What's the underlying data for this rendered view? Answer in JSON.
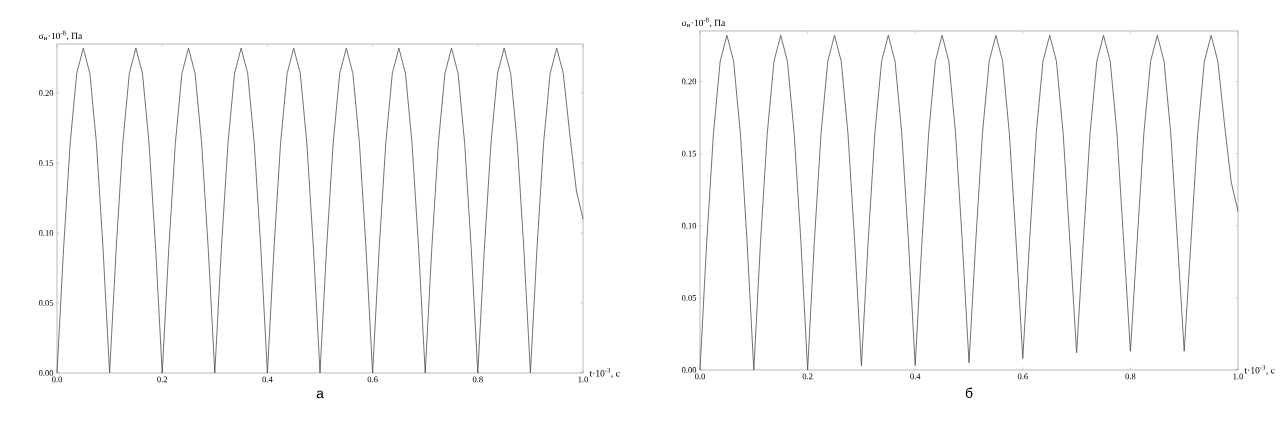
{
  "chart_data": [
    {
      "type": "line",
      "title": "а",
      "xlabel": "t·10$^{-3}$, с",
      "ylabel": "σ$_{и}$·10$^{-8}$, Па",
      "color": "#4d4d4d",
      "grid": false,
      "marker": "none",
      "xlim": [
        0,
        1.0
      ],
      "ylim": [
        0,
        0.235
      ],
      "xticks": [
        {
          "value": 0,
          "label": "0.0"
        },
        {
          "value": 0.2,
          "label": "0.2"
        },
        {
          "value": 0.4,
          "label": "0.4"
        },
        {
          "value": 0.6,
          "label": "0.6"
        },
        {
          "value": 0.8,
          "label": "0.8"
        },
        {
          "value": 1.0,
          "label": "1.0"
        }
      ],
      "yticks": [
        {
          "value": 0,
          "label": "0.00"
        },
        {
          "value": 0.05,
          "label": "0.05"
        },
        {
          "value": 0.1,
          "label": "0.10"
        },
        {
          "value": 0.15,
          "label": "0.15"
        },
        {
          "value": 0.2,
          "label": "0.20"
        }
      ],
      "x": [
        0,
        0.0125,
        0.025,
        0.0375,
        0.05,
        0.0625,
        0.075,
        0.0875,
        0.1,
        0.1125,
        0.125,
        0.1375,
        0.15,
        0.1625,
        0.175,
        0.1875,
        0.2,
        0.2125,
        0.225,
        0.2375,
        0.25,
        0.2625,
        0.275,
        0.2875,
        0.3,
        0.3125,
        0.325,
        0.3375,
        0.35,
        0.3625,
        0.375,
        0.3875,
        0.4,
        0.4125,
        0.425,
        0.4375,
        0.45,
        0.4625,
        0.475,
        0.4875,
        0.5,
        0.5125,
        0.525,
        0.5375,
        0.55,
        0.5625,
        0.575,
        0.5875,
        0.6,
        0.6125,
        0.625,
        0.6375,
        0.65,
        0.6625,
        0.675,
        0.6875,
        0.7,
        0.7125,
        0.725,
        0.7375,
        0.75,
        0.7625,
        0.775,
        0.7875,
        0.8,
        0.8125,
        0.825,
        0.8375,
        0.85,
        0.8625,
        0.875,
        0.8875,
        0.9,
        0.9125,
        0.925,
        0.9375,
        0.95,
        0.9625,
        0.975,
        0.9875,
        1.0
      ],
      "values": [
        0,
        0.089,
        0.164,
        0.214,
        0.232,
        0.214,
        0.164,
        0.089,
        0,
        0.089,
        0.164,
        0.214,
        0.232,
        0.214,
        0.164,
        0.089,
        0,
        0.089,
        0.164,
        0.214,
        0.232,
        0.214,
        0.164,
        0.089,
        0,
        0.089,
        0.164,
        0.214,
        0.232,
        0.214,
        0.164,
        0.089,
        0,
        0.089,
        0.164,
        0.214,
        0.232,
        0.214,
        0.164,
        0.089,
        0,
        0.089,
        0.164,
        0.214,
        0.232,
        0.214,
        0.164,
        0.089,
        0,
        0.089,
        0.164,
        0.214,
        0.232,
        0.214,
        0.164,
        0.089,
        0,
        0.089,
        0.164,
        0.214,
        0.232,
        0.214,
        0.164,
        0.089,
        0,
        0.089,
        0.164,
        0.214,
        0.232,
        0.214,
        0.164,
        0.089,
        0,
        0.089,
        0.164,
        0.214,
        0.232,
        0.214,
        0.17,
        0.13,
        0.11
      ]
    },
    {
      "type": "line",
      "title": "б",
      "xlabel": "t·10$^{-3}$, с",
      "ylabel": "σ$_{и}$·10$^{-8}$, Па",
      "color": "#4d4d4d",
      "grid": false,
      "marker": "none",
      "xlim": [
        0,
        1.0
      ],
      "ylim": [
        0,
        0.235
      ],
      "xticks": [
        {
          "value": 0,
          "label": "0.0"
        },
        {
          "value": 0.2,
          "label": "0.2"
        },
        {
          "value": 0.4,
          "label": "0.4"
        },
        {
          "value": 0.6,
          "label": "0.6"
        },
        {
          "value": 0.8,
          "label": "0.8"
        },
        {
          "value": 1.0,
          "label": "1.0"
        }
      ],
      "yticks": [
        {
          "value": 0,
          "label": "0.00"
        },
        {
          "value": 0.05,
          "label": "0.05"
        },
        {
          "value": 0.1,
          "label": "0.10"
        },
        {
          "value": 0.15,
          "label": "0.15"
        },
        {
          "value": 0.2,
          "label": "0.20"
        }
      ],
      "x": [
        0,
        0.0125,
        0.025,
        0.0375,
        0.05,
        0.0625,
        0.075,
        0.0875,
        0.1,
        0.1125,
        0.125,
        0.1375,
        0.15,
        0.1625,
        0.175,
        0.1875,
        0.2,
        0.2125,
        0.225,
        0.2375,
        0.25,
        0.2625,
        0.275,
        0.2875,
        0.3,
        0.3125,
        0.325,
        0.3375,
        0.35,
        0.3625,
        0.375,
        0.3875,
        0.4,
        0.4125,
        0.425,
        0.4375,
        0.45,
        0.4625,
        0.475,
        0.4875,
        0.5,
        0.5125,
        0.525,
        0.5375,
        0.55,
        0.5625,
        0.575,
        0.5875,
        0.6,
        0.6125,
        0.625,
        0.6375,
        0.65,
        0.6625,
        0.675,
        0.6875,
        0.7,
        0.7125,
        0.725,
        0.7375,
        0.75,
        0.7625,
        0.775,
        0.7875,
        0.8,
        0.8125,
        0.825,
        0.8375,
        0.85,
        0.8625,
        0.875,
        0.8875,
        0.9,
        0.9125,
        0.925,
        0.9375,
        0.95,
        0.9625,
        0.975,
        0.9875,
        1.0
      ],
      "values": [
        0,
        0.089,
        0.164,
        0.214,
        0.232,
        0.214,
        0.164,
        0.089,
        0,
        0.089,
        0.164,
        0.214,
        0.232,
        0.214,
        0.164,
        0.089,
        0,
        0.089,
        0.164,
        0.214,
        0.232,
        0.214,
        0.164,
        0.089,
        0.003,
        0.089,
        0.164,
        0.214,
        0.232,
        0.214,
        0.164,
        0.089,
        0.003,
        0.089,
        0.164,
        0.214,
        0.232,
        0.214,
        0.164,
        0.089,
        0.005,
        0.089,
        0.164,
        0.214,
        0.232,
        0.214,
        0.164,
        0.089,
        0.008,
        0.089,
        0.164,
        0.214,
        0.232,
        0.214,
        0.164,
        0.089,
        0.012,
        0.089,
        0.164,
        0.214,
        0.232,
        0.214,
        0.164,
        0.089,
        0.013,
        0.089,
        0.164,
        0.214,
        0.232,
        0.214,
        0.164,
        0.089,
        0.013,
        0.089,
        0.164,
        0.214,
        0.232,
        0.214,
        0.17,
        0.13,
        0.11
      ]
    }
  ]
}
